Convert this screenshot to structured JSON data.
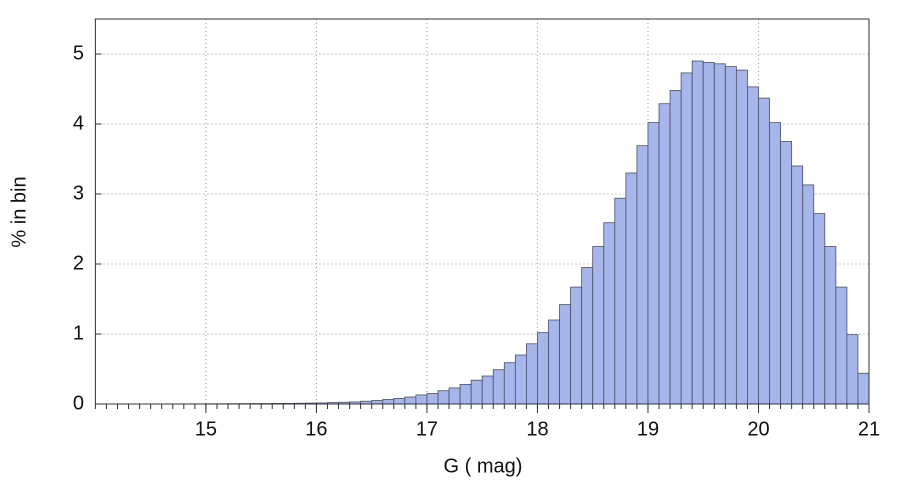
{
  "chart_data": {
    "type": "histogram",
    "xlabel": "G ( mag)",
    "ylabel": "% in bin",
    "bins": [
      14.0,
      14.1,
      14.2,
      14.3,
      14.4,
      14.5,
      14.6,
      14.7,
      14.8,
      14.9,
      15.0,
      15.1,
      15.2,
      15.3,
      15.4,
      15.5,
      15.6,
      15.7,
      15.8,
      15.9,
      16.0,
      16.1,
      16.2,
      16.3,
      16.4,
      16.5,
      16.6,
      16.7,
      16.8,
      16.9,
      17.0,
      17.1,
      17.2,
      17.3,
      17.4,
      17.5,
      17.6,
      17.7,
      17.8,
      17.9,
      18.0,
      18.1,
      18.2,
      18.3,
      18.4,
      18.5,
      18.6,
      18.7,
      18.8,
      18.9,
      19.0,
      19.1,
      19.2,
      19.3,
      19.4,
      19.5,
      19.6,
      19.7,
      19.8,
      19.9,
      20.0,
      20.1,
      20.2,
      20.3,
      20.4,
      20.5,
      20.6,
      20.7,
      20.8,
      20.9,
      21.0
    ],
    "values": [
      0,
      0,
      0,
      0,
      0,
      0,
      0.001,
      0.001,
      0.002,
      0.002,
      0.003,
      0.003,
      0.004,
      0.005,
      0.006,
      0.007,
      0.008,
      0.009,
      0.011,
      0.013,
      0.015,
      0.02,
      0.025,
      0.03,
      0.04,
      0.05,
      0.065,
      0.08,
      0.1,
      0.13,
      0.15,
      0.19,
      0.23,
      0.28,
      0.34,
      0.4,
      0.49,
      0.59,
      0.7,
      0.86,
      1.02,
      1.2,
      1.42,
      1.67,
      1.95,
      2.25,
      2.59,
      2.94,
      3.3,
      3.69,
      4.02,
      4.29,
      4.48,
      4.73,
      4.9,
      4.88,
      4.86,
      4.82,
      4.77,
      4.53,
      4.37,
      4.02,
      3.75,
      3.4,
      3.13,
      2.72,
      2.25,
      1.67,
      0.99,
      0.44
    ],
    "color": "#a6b6ea",
    "xlim": [
      14,
      21
    ],
    "ylim": [
      0,
      5.5
    ],
    "xticks": [
      15,
      16,
      17,
      18,
      19,
      20,
      21
    ],
    "yticks": [
      0,
      1,
      2,
      3,
      4,
      5
    ],
    "grid": true
  }
}
